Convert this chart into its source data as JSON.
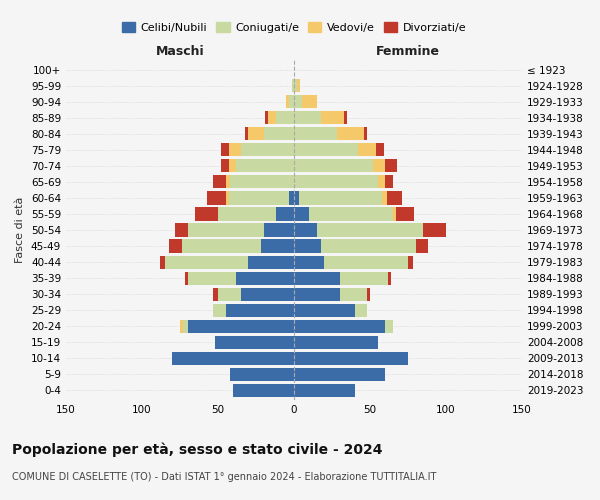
{
  "age_groups": [
    "0-4",
    "5-9",
    "10-14",
    "15-19",
    "20-24",
    "25-29",
    "30-34",
    "35-39",
    "40-44",
    "45-49",
    "50-54",
    "55-59",
    "60-64",
    "65-69",
    "70-74",
    "75-79",
    "80-84",
    "85-89",
    "90-94",
    "95-99",
    "100+"
  ],
  "birth_years": [
    "2019-2023",
    "2014-2018",
    "2009-2013",
    "2004-2008",
    "1999-2003",
    "1994-1998",
    "1989-1993",
    "1984-1988",
    "1979-1983",
    "1974-1978",
    "1969-1973",
    "1964-1968",
    "1959-1963",
    "1954-1958",
    "1949-1953",
    "1944-1948",
    "1939-1943",
    "1934-1938",
    "1929-1933",
    "1924-1928",
    "≤ 1923"
  ],
  "male": {
    "celibe": [
      40,
      42,
      80,
      52,
      70,
      45,
      35,
      38,
      30,
      22,
      20,
      12,
      3,
      0,
      0,
      0,
      0,
      0,
      0,
      0,
      0
    ],
    "coniugato": [
      0,
      0,
      0,
      0,
      3,
      8,
      15,
      32,
      55,
      52,
      50,
      38,
      40,
      42,
      38,
      35,
      20,
      12,
      3,
      1,
      0
    ],
    "vedovo": [
      0,
      0,
      0,
      0,
      2,
      0,
      0,
      0,
      0,
      0,
      0,
      0,
      2,
      3,
      5,
      8,
      10,
      5,
      2,
      0,
      0
    ],
    "divorziato": [
      0,
      0,
      0,
      0,
      0,
      0,
      3,
      2,
      3,
      8,
      8,
      15,
      12,
      8,
      5,
      5,
      2,
      2,
      0,
      0,
      0
    ]
  },
  "female": {
    "nubile": [
      40,
      60,
      75,
      55,
      60,
      40,
      30,
      30,
      20,
      18,
      15,
      10,
      3,
      0,
      0,
      0,
      0,
      0,
      0,
      0,
      0
    ],
    "coniugata": [
      0,
      0,
      0,
      0,
      5,
      8,
      18,
      32,
      55,
      62,
      70,
      55,
      55,
      55,
      52,
      42,
      28,
      18,
      5,
      2,
      0
    ],
    "vedova": [
      0,
      0,
      0,
      0,
      0,
      0,
      0,
      0,
      0,
      0,
      0,
      2,
      3,
      5,
      8,
      12,
      18,
      15,
      10,
      2,
      0
    ],
    "divorziata": [
      0,
      0,
      0,
      0,
      0,
      0,
      2,
      2,
      3,
      8,
      15,
      12,
      10,
      5,
      8,
      5,
      2,
      2,
      0,
      0,
      0
    ]
  },
  "colors": {
    "celibe": "#3c6ca8",
    "coniugato": "#c8d9a2",
    "vedovo": "#f5c96a",
    "divorziato": "#c0392b"
  },
  "xlim": 150,
  "title": "Popolazione per età, sesso e stato civile - 2024",
  "subtitle": "COMUNE DI CASELETTE (TO) - Dati ISTAT 1° gennaio 2024 - Elaborazione TUTTITALIA.IT",
  "ylabel_left": "Fasce di età",
  "xlabel_left": "Maschi",
  "xlabel_right": "Femmine",
  "legend_labels": [
    "Celibi/Nubili",
    "Coniugati/e",
    "Vedovi/e",
    "Divorziati/e"
  ],
  "bg_color": "#f5f5f5"
}
